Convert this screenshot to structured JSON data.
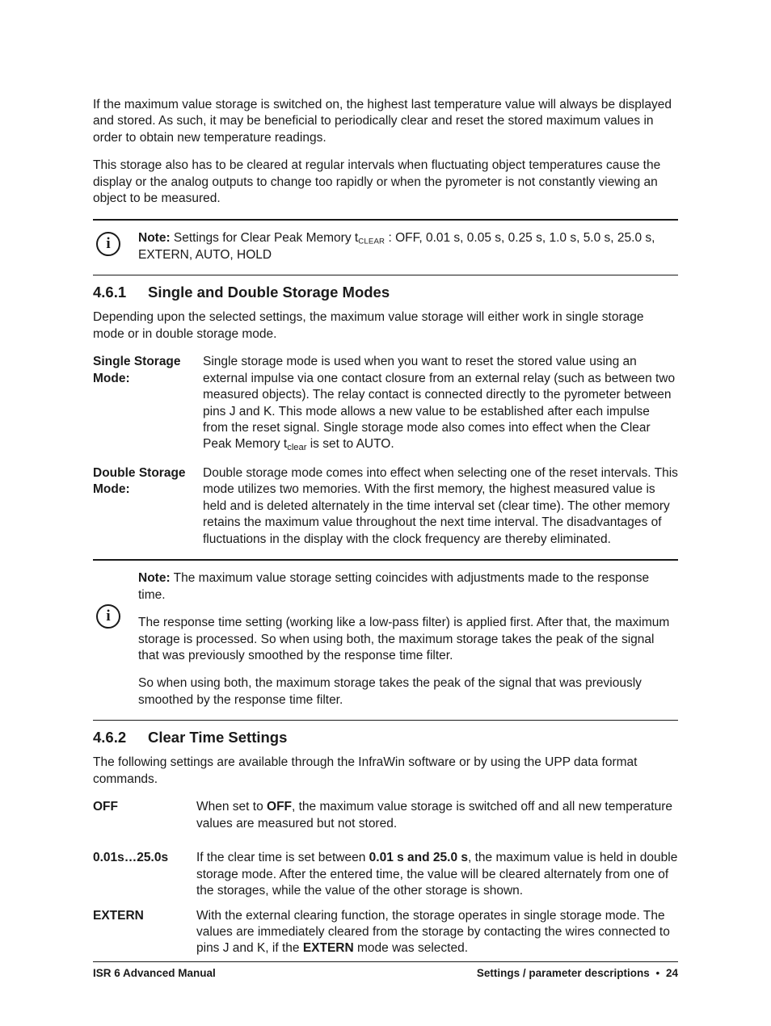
{
  "intro": {
    "p1": "If the maximum value storage is switched on, the highest last temperature value will always be displayed and stored. As such, it may be beneficial to periodically clear and reset the stored maximum values in order to obtain new temperature readings.",
    "p2": "This storage also has to be cleared at regular intervals when fluctuating object temperatures cause the display or the analog outputs to change too rapidly or when the pyrometer is not constantly viewing an object to be measured."
  },
  "note1": {
    "label": "Note:",
    "text_prefix": " Settings for Clear Peak Memory t",
    "sub": "CLEAR",
    "text_suffix": " : OFF, 0.01 s, 0.05 s, 0.25 s, 1.0 s, 5.0 s, 25.0 s, EXTERN, AUTO, HOLD"
  },
  "section_461": {
    "num": "4.6.1",
    "title": "Single and Double Storage Modes",
    "intro": "Depending upon the selected settings, the maximum value storage will either work in single storage mode or in double storage mode.",
    "single_term": "Single Storage Mode:",
    "single_body_prefix": "Single storage mode is used when you want to reset the stored value using an external impulse via one contact closure from an external relay (such as between two measured objects). The relay contact is connected directly to the pyrometer between pins J and K. This mode allows a new value to be established after each impulse from the reset signal. Single storage mode also comes into effect when the Clear Peak Memory t",
    "single_body_sub": "clear",
    "single_body_suffix": " is set to AUTO.",
    "double_term": "Double Storage Mode:",
    "double_body": "Double storage mode comes into effect when selecting one of the reset intervals. This mode utilizes two memories. With the first memory, the highest measured value is held and is deleted alternately in the time interval set (clear time). The other memory retains the maximum value throughout the next time interval. The disadvantages of fluctuations in the display with the clock frequency are thereby eliminated."
  },
  "note2": {
    "label": "Note:",
    "p1_rest": "  The maximum value storage setting coincides with adjustments made to the response time.",
    "p2": "The response time setting (working like a low-pass filter) is applied first. After that, the maximum storage is processed. So when using both, the maximum storage takes the peak of the signal that was previously smoothed by the response time filter.",
    "p3": "So when using both, the maximum storage takes the peak of the signal that was previously smoothed by the response time filter."
  },
  "section_462": {
    "num": "4.6.2",
    "title": "Clear Time Settings",
    "intro": "The following settings are available through the InfraWin software or by using the UPP data format commands.",
    "off_term": "OFF",
    "off_pre": "When set to ",
    "off_bold": "OFF",
    "off_post": ", the maximum value storage is switched off and all new temperature values are measured but not stored.",
    "range_term": "0.01s…25.0s",
    "range_pre": "If the clear time is set between ",
    "range_bold": "0.01 s and 25.0 s",
    "range_post": ", the maximum value is held in double storage mode. After the entered time, the value will be cleared alternately from one of the storages, while the value of the other storage is shown.",
    "extern_term": "EXTERN",
    "extern_pre": "With the external clearing function, the storage operates in single storage mode. The values are immediately cleared from the storage by contacting the wires connected to pins J and K, if the ",
    "extern_bold": "EXTERN",
    "extern_post": " mode was selected."
  },
  "footer": {
    "left": "ISR 6 Advanced Manual",
    "right_label": "Settings / parameter descriptions",
    "dot": "•",
    "page": "24"
  },
  "icon_glyph": "i"
}
